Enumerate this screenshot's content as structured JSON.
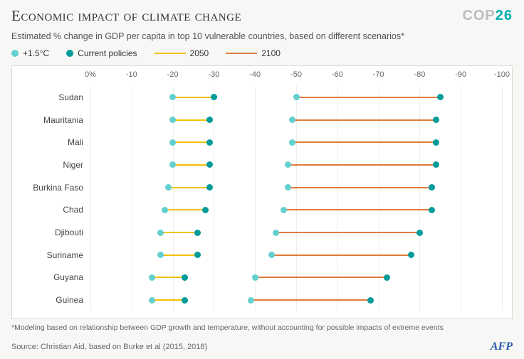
{
  "title": "Economic impact of climate change",
  "cop_label": {
    "prefix": "COP",
    "num": "26",
    "prefix_color": "#bdbdbd",
    "num_color": "#00b1b0"
  },
  "subtitle": "Estimated % change in GDP per capita in top 10 vulnerable countries, based on different scenarios*",
  "legend": {
    "scenario_a": {
      "label": "+1.5°C",
      "color": "#63d0cf"
    },
    "scenario_b": {
      "label": "Current policies",
      "color": "#009b9a"
    },
    "year_a": {
      "label": "2050",
      "color": "#f2c200"
    },
    "year_b": {
      "label": "2100",
      "color": "#e07b39"
    }
  },
  "x_axis": {
    "min": 0,
    "max": -100,
    "ticks": [
      {
        "v": 0,
        "label": "0%"
      },
      {
        "v": -10,
        "label": "-10"
      },
      {
        "v": -20,
        "label": "-20"
      },
      {
        "v": -30,
        "label": "-30"
      },
      {
        "v": -40,
        "label": "-40"
      },
      {
        "v": -50,
        "label": "-50"
      },
      {
        "v": -60,
        "label": "-60"
      },
      {
        "v": -70,
        "label": "-70"
      },
      {
        "v": -80,
        "label": "-80"
      },
      {
        "v": -90,
        "label": "-90"
      },
      {
        "v": -100,
        "label": "-100"
      }
    ]
  },
  "rows": [
    {
      "country": "Sudan",
      "a_2050": -20,
      "b_2050": -30,
      "a_2100": -50,
      "b_2100": -85
    },
    {
      "country": "Mauritania",
      "a_2050": -20,
      "b_2050": -29,
      "a_2100": -49,
      "b_2100": -84
    },
    {
      "country": "Mali",
      "a_2050": -20,
      "b_2050": -29,
      "a_2100": -49,
      "b_2100": -84
    },
    {
      "country": "Niger",
      "a_2050": -20,
      "b_2050": -29,
      "a_2100": -48,
      "b_2100": -84
    },
    {
      "country": "Burkina Faso",
      "a_2050": -19,
      "b_2050": -29,
      "a_2100": -48,
      "b_2100": -83
    },
    {
      "country": "Chad",
      "a_2050": -18,
      "b_2050": -28,
      "a_2100": -47,
      "b_2100": -83
    },
    {
      "country": "Djibouti",
      "a_2050": -17,
      "b_2050": -26,
      "a_2100": -45,
      "b_2100": -80
    },
    {
      "country": "Suriname",
      "a_2050": -17,
      "b_2050": -26,
      "a_2100": -44,
      "b_2100": -78
    },
    {
      "country": "Guyana",
      "a_2050": -15,
      "b_2050": -23,
      "a_2100": -40,
      "b_2100": -72
    },
    {
      "country": "Guinea",
      "a_2050": -15,
      "b_2050": -23,
      "a_2100": -39,
      "b_2100": -68
    }
  ],
  "colors": {
    "dot_a": "#63d0cf",
    "dot_b": "#009b9a",
    "line_2050": "#f2c200",
    "line_2100": "#e07b39",
    "bg": "#f7f7f5",
    "box_bg": "#ffffff",
    "box_border": "#d9d9d6",
    "grid": "#eeeeee",
    "afp": "#2a5caa"
  },
  "footnote": "*Modeling based on relationship between GDP growth and temperature, without accounting for possible impacts of extreme events",
  "source": "Source: Christian Aid, based on Burke et al (2015, 2018)",
  "afp": "AFP"
}
